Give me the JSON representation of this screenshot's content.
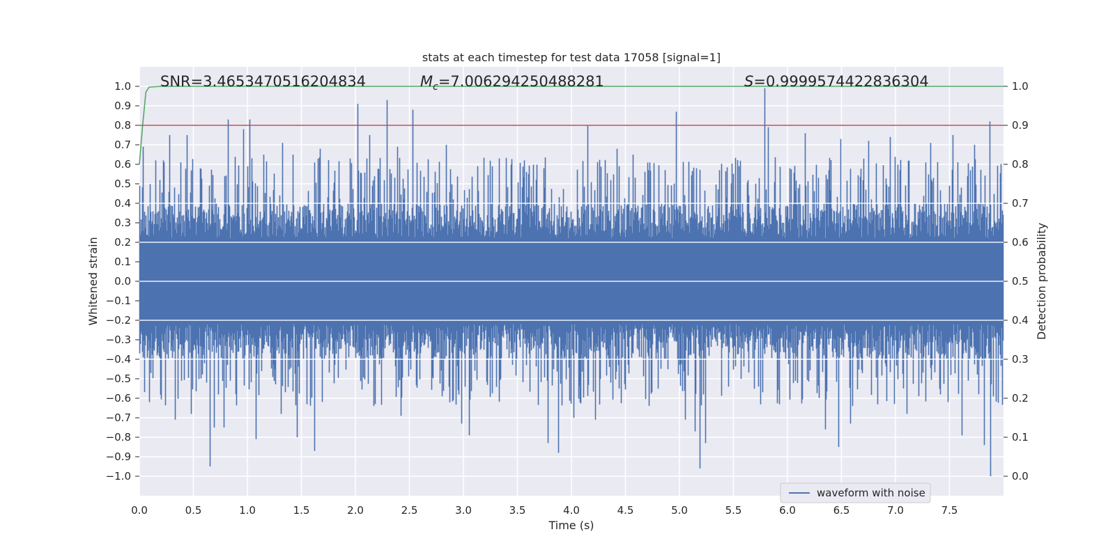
{
  "chart_data": {
    "type": "line",
    "title": "stats at each timestep for test data 17058 [signal=1]",
    "xlabel": "Time (s)",
    "ylabel": "Whitened strain",
    "y2label": "Detection probability",
    "xlim": [
      0.0,
      8.0
    ],
    "ylim": [
      -1.1,
      1.1
    ],
    "y2lim": [
      -0.05,
      1.05
    ],
    "xticks": [
      "0.0",
      "0.5",
      "1.0",
      "1.5",
      "2.0",
      "2.5",
      "3.0",
      "3.5",
      "4.0",
      "4.5",
      "5.0",
      "5.5",
      "6.0",
      "6.5",
      "7.0",
      "7.5"
    ],
    "yticks": [
      "1.0",
      "0.9",
      "0.8",
      "0.7",
      "0.6",
      "0.5",
      "0.4",
      "0.3",
      "0.2",
      "0.1",
      "0.0",
      "−0.1",
      "−0.2",
      "−0.3",
      "−0.4",
      "−0.5",
      "−0.6",
      "−0.7",
      "−0.8",
      "−0.9",
      "−1.0"
    ],
    "y2ticks": [
      "1.0",
      "0.9",
      "0.8",
      "0.7",
      "0.6",
      "0.5",
      "0.4",
      "0.3",
      "0.2",
      "0.1",
      "0.0"
    ],
    "grid": true,
    "legend_position": "lower-right",
    "annotations": {
      "snr": "SNR=3.4653470516204834",
      "mc": "=7.006294250488281",
      "s": "=0.9999574422836304"
    },
    "series": [
      {
        "name": "waveform with noise",
        "axis": "left",
        "color": "#4c72b0",
        "sample_rate_hz": 2048,
        "duration_s": 8.0,
        "envelope_max": 0.4,
        "envelope_min": -0.4,
        "peaks": [
          [
            0.03,
            0.69
          ],
          [
            0.09,
            -0.62
          ],
          [
            0.15,
            0.62
          ],
          [
            0.22,
            0.62
          ],
          [
            0.28,
            0.75
          ],
          [
            0.33,
            -0.71
          ],
          [
            0.44,
            0.75
          ],
          [
            0.48,
            -0.68
          ],
          [
            0.56,
            0.58
          ],
          [
            0.65,
            -0.95
          ],
          [
            0.69,
            -0.75
          ],
          [
            0.78,
            -0.75
          ],
          [
            0.82,
            0.83
          ],
          [
            0.96,
            0.78
          ],
          [
            1.02,
            0.83
          ],
          [
            1.08,
            -0.81
          ],
          [
            1.15,
            0.65
          ],
          [
            1.32,
            0.71
          ],
          [
            1.31,
            -0.68
          ],
          [
            1.42,
            0.65
          ],
          [
            1.46,
            -0.8
          ],
          [
            1.62,
            -0.87
          ],
          [
            1.67,
            0.68
          ],
          [
            1.95,
            0.63
          ],
          [
            2.02,
            0.91
          ],
          [
            2.13,
            0.75
          ],
          [
            2.17,
            -0.64
          ],
          [
            2.29,
            0.93
          ],
          [
            2.39,
            0.69
          ],
          [
            2.42,
            -0.69
          ],
          [
            2.53,
            0.88
          ],
          [
            2.67,
            0.6
          ],
          [
            2.84,
            0.7
          ],
          [
            2.98,
            -0.73
          ],
          [
            3.05,
            -0.79
          ],
          [
            3.13,
            0.59
          ],
          [
            3.33,
            0.63
          ],
          [
            3.56,
            0.62
          ],
          [
            3.74,
            0.58
          ],
          [
            3.78,
            -0.83
          ],
          [
            3.88,
            -0.88
          ],
          [
            4.02,
            -0.7
          ],
          [
            4.15,
            0.8
          ],
          [
            4.22,
            -0.71
          ],
          [
            4.42,
            0.68
          ],
          [
            4.57,
            0.65
          ],
          [
            4.72,
            0.61
          ],
          [
            4.97,
            0.87
          ],
          [
            5.05,
            -0.71
          ],
          [
            5.14,
            -0.77
          ],
          [
            5.19,
            -0.96
          ],
          [
            5.24,
            -0.83
          ],
          [
            5.37,
            0.57
          ],
          [
            5.55,
            0.59
          ],
          [
            5.79,
            0.99
          ],
          [
            5.82,
            0.79
          ],
          [
            6.02,
            0.58
          ],
          [
            6.16,
            0.76
          ],
          [
            6.35,
            -0.76
          ],
          [
            6.47,
            -0.85
          ],
          [
            6.49,
            0.73
          ],
          [
            6.58,
            -0.73
          ],
          [
            6.75,
            0.72
          ],
          [
            6.95,
            0.74
          ],
          [
            7.1,
            -0.68
          ],
          [
            7.32,
            0.71
          ],
          [
            7.53,
            0.75
          ],
          [
            7.61,
            -0.79
          ],
          [
            7.73,
            0.7
          ],
          [
            7.82,
            -0.84
          ],
          [
            7.87,
            0.82
          ],
          [
            7.88,
            -1.0
          ]
        ]
      },
      {
        "name": "",
        "axis": "right",
        "color": "#55a868",
        "x": [
          0.0,
          0.03,
          0.06,
          0.09,
          0.2,
          8.0
        ],
        "y": [
          0.8,
          0.9,
          0.985,
          0.998,
          1.0,
          1.0
        ]
      },
      {
        "name": "",
        "axis": "right",
        "color": "#c44e52",
        "x": [
          0.0,
          8.0
        ],
        "y": [
          0.9,
          0.9
        ]
      }
    ]
  }
}
